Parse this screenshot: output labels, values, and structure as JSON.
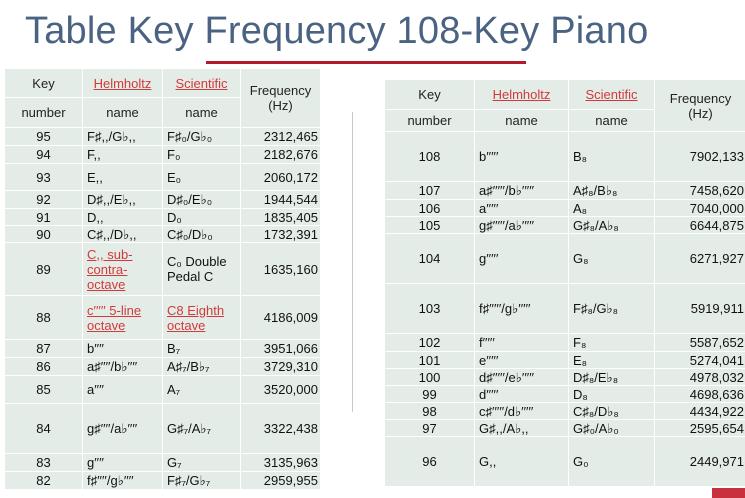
{
  "title": "Table Key Frequency 108-Key Piano",
  "tables": [
    {
      "headers": {
        "key": "Key",
        "helmholtz": "Helmholtz",
        "scientific": "Scientific",
        "frequency": "Frequency (Hz)",
        "number": "number",
        "name1": "name",
        "name2": "name"
      },
      "rows": [
        {
          "n": "95",
          "h": "F♯,,/G♭,,",
          "s": "F♯₀/G♭₀",
          "f": "2312,465"
        },
        {
          "n": "94",
          "h": "F,,",
          "s": "F₀",
          "f": "2182,676"
        },
        {
          "n": "93",
          "h": "E,,",
          "s": "E₀",
          "f": "2060,172"
        },
        {
          "n": "92",
          "h": "D♯,,/E♭,,",
          "s": "D♯₀/E♭₀",
          "f": "1944,544"
        },
        {
          "n": "91",
          "h": "D,,",
          "s": "D₀",
          "f": "1835,405"
        },
        {
          "n": "90",
          "h": "C♯,,/D♭,,",
          "s": "C♯₀/D♭₀",
          "f": "1732,391"
        },
        {
          "n": "89",
          "h": "C,, sub-contra-octave",
          "s": "C₀ Double Pedal C",
          "f": "1635,160"
        },
        {
          "n": "88",
          "h": "c′′′′′ 5-line octave",
          "s": "C8 Eighth octave",
          "f": "4186,009"
        },
        {
          "n": "87",
          "h": "b′′′′",
          "s": "B₇",
          "f": "3951,066"
        },
        {
          "n": "86",
          "h": "a♯′′′′/b♭′′′′",
          "s": "A♯₇/B♭₇",
          "f": "3729,310"
        },
        {
          "n": "85",
          "h": "a′′′′",
          "s": "A₇",
          "f": "3520,000"
        },
        {
          "n": "84",
          "h": "g♯′′′′/a♭′′′′",
          "s": "G♯₇/A♭₇",
          "f": "3322,438"
        },
        {
          "n": "83",
          "h": "g′′′′",
          "s": "G₇",
          "f": "3135,963"
        },
        {
          "n": "82",
          "h": "f♯′′′′/g♭′′′′",
          "s": "F♯₇/G♭₇",
          "f": "2959,955"
        }
      ]
    },
    {
      "headers": {
        "key": "Key",
        "helmholtz": "Helmholtz",
        "scientific": "Scientific",
        "frequency": "Frequency (Hz)",
        "number": "number",
        "name1": "name",
        "name2": "name"
      },
      "rows": [
        {
          "n": "108",
          "h": "b′′′′′",
          "s": "B₈",
          "f": "7902,133"
        },
        {
          "n": "107",
          "h": "a♯′′′′′/b♭′′′′′",
          "s": "A♯₈/B♭₈",
          "f": "7458,620"
        },
        {
          "n": "106",
          "h": "a′′′′′",
          "s": "A₈",
          "f": "7040,000"
        },
        {
          "n": "105",
          "h": "g♯′′′′′/a♭′′′′′",
          "s": "G♯₈/A♭₈",
          "f": "6644,875"
        },
        {
          "n": "104",
          "h": "g′′′′′",
          "s": "G₈",
          "f": "6271,927"
        },
        {
          "n": "103",
          "h": "f♯′′′′′/g♭′′′′′",
          "s": "F♯₈/G♭₈",
          "f": "5919,911"
        },
        {
          "n": "102",
          "h": "f′′′′′",
          "s": "F₈",
          "f": "5587,652"
        },
        {
          "n": "101",
          "h": "e′′′′′",
          "s": "E₈",
          "f": "5274,041"
        },
        {
          "n": "100",
          "h": "d♯′′′′′/e♭′′′′′",
          "s": "D♯₈/E♭₈",
          "f": "4978,032"
        },
        {
          "n": "99",
          "h": "d′′′′′",
          "s": "D₈",
          "f": "4698,636"
        },
        {
          "n": "98",
          "h": "c♯′′′′′/d♭′′′′′",
          "s": "C♯₈/D♭₈",
          "f": "4434,922"
        },
        {
          "n": "97",
          "h": "G♯,,/A♭,,",
          "s": "G♯₀/A♭₀",
          "f": "2595,654"
        },
        {
          "n": "96",
          "h": "G,,",
          "s": "G₀",
          "f": "2449,971"
        }
      ]
    }
  ]
}
